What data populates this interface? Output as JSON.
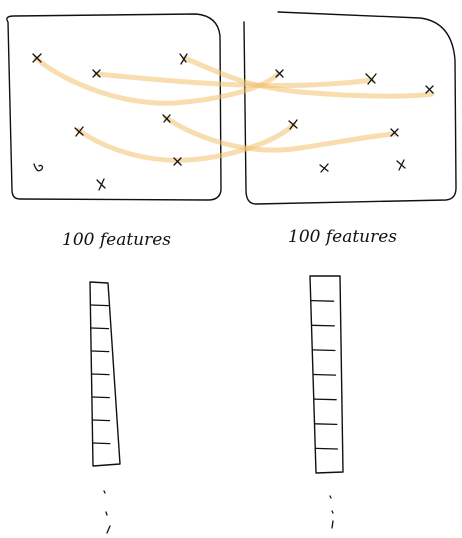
{
  "colors": {
    "ink": "#111111",
    "link_highlight": "#f2c16f",
    "background": "#ffffff"
  },
  "left_panel": {
    "caption": "100 features",
    "feature_marker_icon": "x-mark-icon",
    "vector_cell_count": 8
  },
  "right_panel": {
    "caption": "100 features",
    "feature_marker_icon": "x-mark-icon",
    "vector_cell_count": 8
  },
  "correspondences": {
    "count": 5,
    "style": "highlighter-curve"
  }
}
